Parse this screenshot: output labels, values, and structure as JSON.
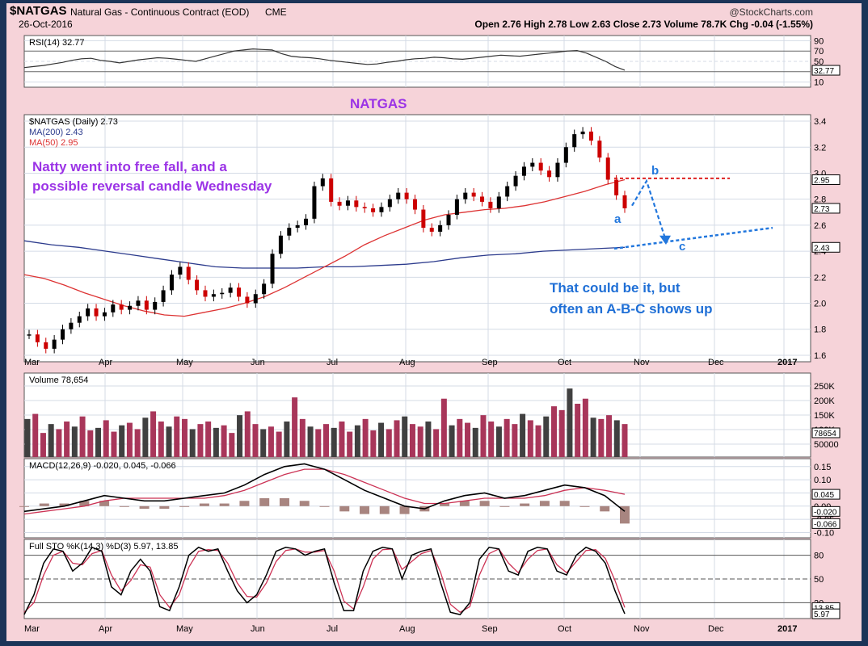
{
  "header": {
    "symbol": "$NATGAS",
    "description": "Natural Gas - Continuous Contract (EOD)",
    "exchange": "CME",
    "date": "26-Oct-2016",
    "watermark": "@StockCharts.com",
    "quote": "Open 2.76  High 2.78  Low 2.63  Close 2.73  Volume 78.7K  Chg -0.04 (-1.55%)"
  },
  "colors": {
    "page_bg": "#f6d3d9",
    "panel_bg": "#ffffff",
    "grid": "#d4dbe6",
    "candle_up": "#000000",
    "candle_down": "#cc0000",
    "ma200": "#2b3a8c",
    "ma50": "#dd3333",
    "volume_up": "#404040",
    "volume_down": "#a8365a",
    "annotation_purple": "#9b33e6",
    "annotation_blue": "#1f6fd6",
    "abc_blue": "#2277dd",
    "resistance_red": "#dd2222"
  },
  "chart_data": {
    "type": "line",
    "x_axis": {
      "months": [
        "Mar",
        "Apr",
        "May",
        "Jun",
        "Jul",
        "Aug",
        "Sep",
        "Oct",
        "Nov",
        "Dec",
        "2017"
      ]
    },
    "panels": [
      {
        "name": "rsi",
        "legend": [
          "RSI(14) 32.77"
        ],
        "ylim": [
          0,
          100
        ],
        "ticks": [
          "90",
          "70",
          "50",
          "30",
          "10"
        ],
        "marker": "32.77",
        "overbought": 70,
        "oversold": 30,
        "series": [
          {
            "name": "RSI(14)",
            "values": [
              38,
              40,
              42,
              45,
              48,
              52,
              55,
              56,
              52,
              50,
              47,
              50,
              53,
              55,
              57,
              56,
              54,
              52,
              50,
              55,
              60,
              65,
              70,
              72,
              74,
              73,
              72,
              65,
              60,
              58,
              57,
              55,
              52,
              50,
              48,
              46,
              44,
              45,
              48,
              50,
              53,
              55,
              56,
              58,
              57,
              55,
              54,
              56,
              58,
              60,
              62,
              61,
              60,
              62,
              64,
              66,
              68,
              70,
              71,
              66,
              58,
              50,
              40,
              33
            ]
          }
        ]
      },
      {
        "name": "price",
        "legend": [
          "$NATGAS (Daily) 2.73",
          "MA(200) 2.43",
          "MA(50) 2.95"
        ],
        "ylim": [
          1.55,
          3.45
        ],
        "ticks": [
          "3.4",
          "3.2",
          "3.0",
          "2.8",
          "2.6",
          "2.4",
          "2.2",
          "2.0",
          "1.8",
          "1.6"
        ],
        "markers": [
          "2.95",
          "2.73",
          "2.43"
        ],
        "panel_title": "NATGAS",
        "series": [
          {
            "name": "$NATGAS (Daily)",
            "values": [
              1.76,
              1.7,
              1.65,
              1.72,
              1.8,
              1.85,
              1.9,
              1.96,
              1.9,
              1.93,
              1.99,
              1.95,
              1.98,
              2.02,
              1.95,
              2.01,
              2.1,
              2.22,
              2.28,
              2.18,
              2.1,
              2.05,
              2.07,
              2.08,
              2.12,
              2.05,
              2.0,
              2.07,
              2.15,
              2.38,
              2.52,
              2.58,
              2.6,
              2.65,
              2.9,
              2.96,
              2.78,
              2.75,
              2.79,
              2.74,
              2.73,
              2.7,
              2.74,
              2.8,
              2.85,
              2.8,
              2.72,
              2.58,
              2.55,
              2.6,
              2.68,
              2.8,
              2.85,
              2.82,
              2.78,
              2.73,
              2.82,
              2.9,
              2.98,
              3.05,
              3.08,
              3.02,
              2.97,
              3.08,
              3.2,
              3.3,
              3.32,
              3.25,
              3.12,
              2.95,
              2.83,
              2.73
            ]
          },
          {
            "name": "MA(200)",
            "values": [
              2.48,
              2.45,
              2.43,
              2.4,
              2.37,
              2.34,
              2.31,
              2.28,
              2.27,
              2.27,
              2.27,
              2.28,
              2.28,
              2.29,
              2.3,
              2.32,
              2.35,
              2.37,
              2.38,
              2.4,
              2.41,
              2.42,
              2.43
            ]
          },
          {
            "name": "MA(50)",
            "values": [
              2.22,
              2.19,
              2.14,
              2.08,
              2.03,
              1.98,
              1.94,
              1.91,
              1.9,
              1.93,
              1.96,
              2.0,
              2.05,
              2.12,
              2.2,
              2.28,
              2.36,
              2.45,
              2.52,
              2.58,
              2.64,
              2.68,
              2.7,
              2.72,
              2.73,
              2.75,
              2.78,
              2.82,
              2.86,
              2.91,
              2.95
            ]
          }
        ]
      },
      {
        "name": "volume",
        "legend": [
          "Volume 78,654"
        ],
        "ticks": [
          "250K",
          "200K",
          "150K",
          "100K",
          "50000"
        ],
        "marker": "78654",
        "series": [
          {
            "name": "Volume",
            "values": [
              150,
              170,
              95,
              130,
              110,
              140,
              120,
              160,
              105,
              115,
              145,
              100,
              125,
              135,
              110,
              155,
              180,
              140,
              120,
              160,
              150,
              110,
              130,
              140,
              115,
              125,
              95,
              165,
              180,
              130,
              110,
              120,
              100,
              140,
              235,
              150,
              120,
              110,
              130,
              115,
              140,
              100,
              125,
              150,
              105,
              135,
              110,
              145,
              160,
              130,
              120,
              140,
              110,
              230,
              125,
              150,
              135,
              115,
              165,
              140,
              120,
              150,
              130,
              170,
              145,
              125,
              160,
              200,
              185,
              270,
              210,
              230,
              155,
              150,
              165,
              145,
              130
            ]
          }
        ]
      },
      {
        "name": "macd",
        "legend": [
          "MACD(12,26,9) -0.020, 0.045, -0.066"
        ],
        "ylim": [
          -0.12,
          0.18
        ],
        "ticks": [
          "0.15",
          "0.10",
          "0.05",
          "0.00",
          "-0.05",
          "-0.10"
        ],
        "markers": [
          "0.045",
          "-0.020",
          "-0.066"
        ],
        "series": [
          {
            "name": "MACD",
            "values": [
              -0.02,
              -0.01,
              0.0,
              0.02,
              0.04,
              0.03,
              0.02,
              0.02,
              0.03,
              0.04,
              0.05,
              0.08,
              0.12,
              0.15,
              0.16,
              0.14,
              0.1,
              0.06,
              0.03,
              0.0,
              -0.01,
              0.02,
              0.04,
              0.05,
              0.03,
              0.04,
              0.06,
              0.08,
              0.07,
              0.04,
              -0.02
            ]
          },
          {
            "name": "Signal",
            "values": [
              -0.03,
              -0.02,
              -0.01,
              0.0,
              0.02,
              0.03,
              0.03,
              0.03,
              0.03,
              0.03,
              0.04,
              0.06,
              0.09,
              0.12,
              0.14,
              0.14,
              0.12,
              0.09,
              0.06,
              0.03,
              0.01,
              0.01,
              0.02,
              0.03,
              0.03,
              0.03,
              0.04,
              0.06,
              0.07,
              0.06,
              0.045
            ]
          },
          {
            "name": "Histogram",
            "values": [
              0.0,
              0.01,
              0.01,
              0.02,
              0.02,
              0.0,
              -0.01,
              -0.01,
              0.0,
              0.01,
              0.01,
              0.02,
              0.03,
              0.03,
              0.02,
              0.0,
              -0.02,
              -0.03,
              -0.03,
              -0.03,
              -0.02,
              0.01,
              0.02,
              0.02,
              0.0,
              0.01,
              0.02,
              0.02,
              0.0,
              -0.02,
              -0.066
            ]
          }
        ]
      },
      {
        "name": "sto",
        "legend": [
          "Full STO %K(14,3) %D(3) 5.97, 13.85"
        ],
        "ylim": [
          0,
          100
        ],
        "ticks": [
          "80",
          "50",
          "20"
        ],
        "markers": [
          "13.85",
          "5.97"
        ],
        "series": [
          {
            "name": "%K",
            "values": [
              5,
              30,
              70,
              88,
              85,
              60,
              70,
              90,
              85,
              40,
              30,
              60,
              75,
              60,
              15,
              10,
              40,
              80,
              90,
              85,
              88,
              60,
              35,
              20,
              30,
              55,
              85,
              90,
              88,
              80,
              85,
              88,
              45,
              10,
              10,
              60,
              85,
              90,
              88,
              50,
              80,
              85,
              88,
              45,
              8,
              5,
              20,
              75,
              90,
              88,
              60,
              55,
              85,
              90,
              88,
              60,
              55,
              80,
              90,
              85,
              70,
              35,
              6
            ]
          },
          {
            "name": "%D",
            "values": [
              8,
              20,
              55,
              80,
              85,
              70,
              68,
              82,
              86,
              55,
              35,
              48,
              68,
              65,
              30,
              14,
              30,
              65,
              85,
              87,
              86,
              70,
              45,
              28,
              27,
              45,
              72,
              86,
              88,
              84,
              84,
              86,
              60,
              22,
              12,
              40,
              75,
              87,
              88,
              62,
              72,
              82,
              86,
              58,
              18,
              8,
              15,
              55,
              82,
              88,
              70,
              58,
              75,
              86,
              88,
              68,
              58,
              72,
              86,
              87,
              76,
              48,
              14
            ]
          }
        ]
      }
    ],
    "annotations": {
      "panel_title": "NATGAS",
      "text_1": "Natty went into free fall, and a",
      "text_2": "possible reversal candle Wednesday",
      "text_3": "That could be it, but",
      "text_4": "often an A-B-C shows up",
      "wave_a": "a",
      "wave_b": "b",
      "wave_c": "c"
    }
  }
}
